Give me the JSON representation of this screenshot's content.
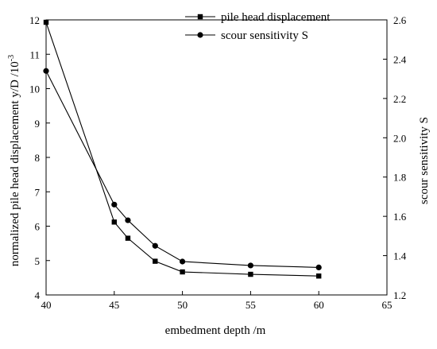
{
  "chart_data": {
    "type": "line",
    "xlabel": "embedment depth /m",
    "ylabel_left": "normalized pile head displacement y/D /10",
    "ylabel_left_sup": "-3",
    "ylabel_right": "scour sensitivity S",
    "xlim": [
      40,
      65
    ],
    "ylim_left": [
      4,
      12
    ],
    "ylim_right": [
      1.2,
      2.6
    ],
    "x_ticks": [
      "40",
      "45",
      "50",
      "55",
      "60",
      "65"
    ],
    "y_left_ticks": [
      "4",
      "5",
      "6",
      "7",
      "8",
      "9",
      "10",
      "11",
      "12"
    ],
    "y_right_ticks": [
      "1.2",
      "1.4",
      "1.6",
      "1.8",
      "2.0",
      "2.2",
      "2.4",
      "2.6"
    ],
    "grid": false,
    "legend_position": "top-right",
    "series": [
      {
        "name": "pile head displacement",
        "axis": "left",
        "marker": "square",
        "x": [
          40,
          45,
          46,
          48,
          50,
          55,
          60
        ],
        "y": [
          11.93,
          6.12,
          5.65,
          4.98,
          4.67,
          4.6,
          4.55
        ]
      },
      {
        "name": "scour sensitivity S",
        "axis": "right",
        "marker": "circle",
        "x": [
          40,
          45,
          46,
          48,
          50,
          55,
          60
        ],
        "y": [
          2.34,
          1.66,
          1.58,
          1.45,
          1.37,
          1.35,
          1.34
        ]
      }
    ]
  }
}
